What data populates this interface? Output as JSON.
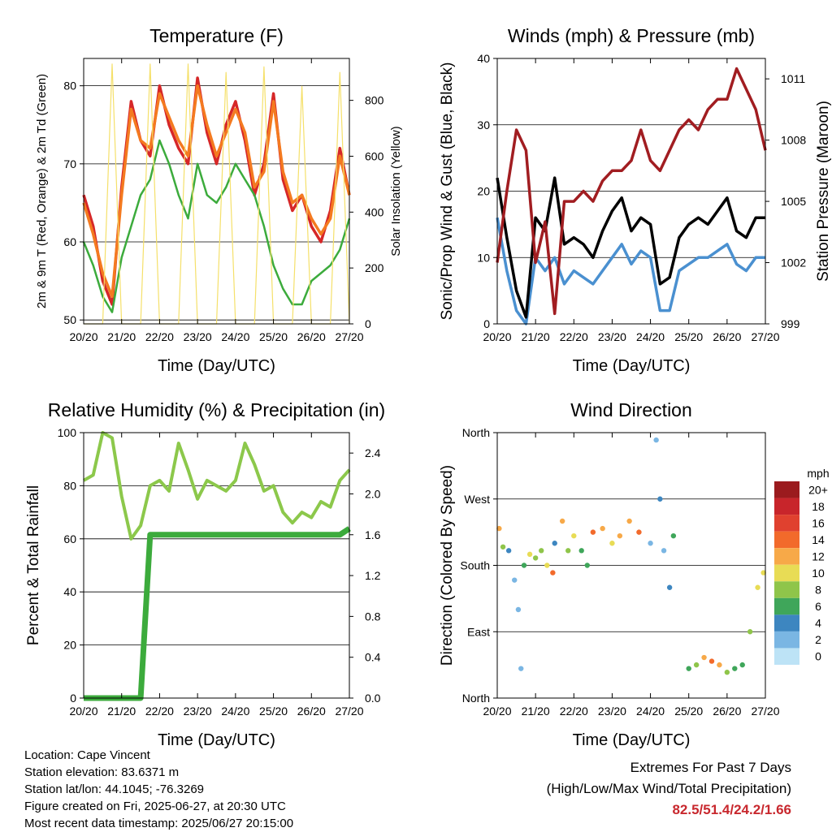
{
  "colors": {
    "temp_2m": "#d62728",
    "temp_9m": "#f47a20",
    "dewpoint": "#3cab3c",
    "insolation": "#f5e06a",
    "wind": "#4a90d0",
    "gust": "#000000",
    "pressure": "#a11d21",
    "rh": "#8cc84b",
    "precip": "#3cab3c",
    "extremes": "#c8282e"
  },
  "x_ticks": [
    "20/20",
    "21/20",
    "22/20",
    "23/20",
    "24/20",
    "25/20",
    "26/20",
    "27/20"
  ],
  "x_label": "Time (Day/UTC)",
  "chart_data": [
    {
      "id": "temperature",
      "type": "line",
      "title": "Temperature (F)",
      "xlabel": "Time (Day/UTC)",
      "ylabel": "2m & 9m T (Red, Orange) & 2m Td (Green)",
      "y2label": "Solar Insolation (Yellow)",
      "ylim": [
        49.5,
        83.5
      ],
      "y_ticks": [
        50,
        60,
        70,
        80
      ],
      "y2lim": [
        0,
        950
      ],
      "y2_ticks": [
        0,
        200,
        400,
        600,
        800
      ],
      "grid": true,
      "x": [
        0,
        0.25,
        0.5,
        0.75,
        1,
        1.25,
        1.5,
        1.75,
        2,
        2.25,
        2.5,
        2.75,
        3,
        3.25,
        3.5,
        3.75,
        4,
        4.25,
        4.5,
        4.75,
        5,
        5.25,
        5.5,
        5.75,
        6,
        6.25,
        6.5,
        6.75,
        7
      ],
      "series": [
        {
          "key": "temp_2m",
          "values": [
            66,
            62,
            55,
            52,
            67,
            78,
            73,
            71,
            80,
            75,
            72,
            70,
            81,
            74,
            70,
            75,
            78,
            73,
            66,
            70,
            79,
            68,
            64,
            66,
            62,
            60,
            64,
            72,
            66
          ]
        },
        {
          "key": "temp_9m",
          "values": [
            65,
            61,
            56,
            53,
            66,
            77,
            73,
            72,
            79,
            76,
            73,
            71,
            80,
            75,
            71,
            74,
            77,
            74,
            67,
            69,
            78,
            69,
            65,
            66,
            63,
            61,
            63,
            71,
            66
          ]
        },
        {
          "key": "dewpoint",
          "values": [
            60,
            57,
            53,
            51,
            58,
            62,
            66,
            68,
            73,
            70,
            66,
            63,
            70,
            66,
            65,
            67,
            70,
            68,
            66,
            62,
            57,
            54,
            52,
            52,
            55,
            56,
            57,
            59,
            63
          ]
        },
        {
          "key": "insolation",
          "values": [
            0,
            0,
            0,
            930,
            0,
            0,
            0,
            930,
            0,
            0,
            0,
            930,
            0,
            0,
            0,
            900,
            0,
            0,
            0,
            920,
            0,
            0,
            0,
            850,
            0,
            0,
            0,
            900,
            0
          ],
          "axis": "y2"
        }
      ]
    },
    {
      "id": "winds",
      "type": "line",
      "title": "Winds (mph) & Pressure (mb)",
      "xlabel": "Time (Day/UTC)",
      "ylabel": "Sonic/Prop Wind & Gust (Blue, Black)",
      "y2label": "Station Pressure (Maroon)",
      "ylim": [
        0,
        40
      ],
      "y_ticks": [
        0,
        10,
        20,
        30,
        40
      ],
      "y2lim": [
        999,
        1012
      ],
      "y2_ticks": [
        999,
        1002,
        1005,
        1008,
        1011
      ],
      "grid": true,
      "x": [
        0,
        0.25,
        0.5,
        0.75,
        1,
        1.25,
        1.5,
        1.75,
        2,
        2.25,
        2.5,
        2.75,
        3,
        3.25,
        3.5,
        3.75,
        4,
        4.25,
        4.5,
        4.75,
        5,
        5.25,
        5.5,
        5.75,
        6,
        6.25,
        6.5,
        6.75,
        7
      ],
      "series": [
        {
          "key": "wind",
          "values": [
            16,
            8,
            2,
            0,
            10,
            8,
            10,
            6,
            8,
            7,
            6,
            8,
            10,
            12,
            9,
            11,
            10,
            2,
            2,
            8,
            9,
            10,
            10,
            11,
            12,
            9,
            8,
            10,
            10
          ]
        },
        {
          "key": "gust",
          "values": [
            22,
            13,
            5,
            1,
            16,
            14,
            22,
            12,
            13,
            12,
            10,
            14,
            17,
            19,
            14,
            16,
            15,
            6,
            7,
            13,
            15,
            16,
            15,
            17,
            19,
            14,
            13,
            16,
            16
          ]
        },
        {
          "key": "pressure",
          "values": [
            1002,
            1005.5,
            1008.5,
            1007.5,
            1002,
            1004,
            999.5,
            1005,
            1005,
            1005.5,
            1005,
            1006,
            1006.5,
            1006.5,
            1007,
            1008.5,
            1007,
            1006.5,
            1007.5,
            1008.5,
            1009,
            1008.5,
            1009.5,
            1010,
            1010,
            1011.5,
            1010.5,
            1009.5,
            1007.5
          ],
          "axis": "y2"
        }
      ]
    },
    {
      "id": "humidity",
      "type": "line",
      "title": "Relative Humidity (%) & Precipitation (in)",
      "xlabel": "Time (Day/UTC)",
      "ylabel": "Percent & Total Rainfall",
      "ylim": [
        0,
        100
      ],
      "y_ticks": [
        0,
        20,
        40,
        60,
        80,
        100
      ],
      "y2lim": [
        0,
        2.6
      ],
      "y2_ticks": [
        0.0,
        0.4,
        0.8,
        1.2,
        1.6,
        2.0,
        2.4
      ],
      "grid": true,
      "x": [
        0,
        0.25,
        0.5,
        0.75,
        1,
        1.25,
        1.5,
        1.75,
        2,
        2.25,
        2.5,
        2.75,
        3,
        3.25,
        3.5,
        3.75,
        4,
        4.25,
        4.5,
        4.75,
        5,
        5.25,
        5.5,
        5.75,
        6,
        6.25,
        6.5,
        6.75,
        7
      ],
      "series": [
        {
          "key": "rh",
          "values": [
            82,
            84,
            100,
            98,
            76,
            60,
            65,
            80,
            82,
            78,
            96,
            86,
            75,
            82,
            80,
            78,
            82,
            96,
            88,
            78,
            80,
            70,
            66,
            70,
            68,
            74,
            72,
            82,
            86
          ]
        },
        {
          "key": "precip",
          "values": [
            0,
            0,
            0,
            0,
            0,
            0,
            0,
            1.6,
            1.6,
            1.6,
            1.6,
            1.6,
            1.6,
            1.6,
            1.6,
            1.6,
            1.6,
            1.6,
            1.6,
            1.6,
            1.6,
            1.6,
            1.6,
            1.6,
            1.6,
            1.6,
            1.6,
            1.6,
            1.66
          ],
          "axis": "y2"
        }
      ]
    },
    {
      "id": "wind_direction",
      "type": "scatter",
      "title": "Wind Direction",
      "xlabel": "Time (Day/UTC)",
      "ylabel": "Direction (Colored By Speed)",
      "ylim": [
        0,
        360
      ],
      "y_ticks": [
        "North",
        "East",
        "South",
        "West",
        "North"
      ],
      "y_tick_values": [
        0,
        90,
        180,
        270,
        360
      ],
      "grid": true,
      "colorbar": {
        "title": "mph",
        "labels": [
          "20+",
          "18",
          "16",
          "14",
          "12",
          "10",
          "8",
          "6",
          "4",
          "2",
          "0"
        ],
        "colors": [
          "#9b1b1e",
          "#c8252b",
          "#e0412f",
          "#f26a2b",
          "#f7a948",
          "#e8dc55",
          "#8fc54a",
          "#3fa65a",
          "#3d86c0",
          "#7ab6e3",
          "#bde3f6"
        ]
      },
      "x": [
        0.05,
        0.15,
        0.3,
        0.45,
        0.55,
        0.62,
        0.7,
        0.85,
        1.0,
        1.15,
        1.3,
        1.45,
        1.5,
        1.7,
        1.85,
        2.0,
        2.2,
        2.35,
        2.5,
        2.75,
        3.0,
        3.2,
        3.45,
        3.7,
        4.0,
        4.15,
        4.25,
        4.35,
        4.5,
        4.6,
        5.0,
        5.2,
        5.4,
        5.6,
        5.8,
        6.0,
        6.2,
        6.4,
        6.6,
        6.8,
        6.95
      ],
      "values": [
        230,
        205,
        200,
        160,
        120,
        40,
        180,
        195,
        190,
        200,
        180,
        170,
        210,
        240,
        200,
        220,
        200,
        180,
        225,
        230,
        210,
        220,
        240,
        225,
        210,
        350,
        270,
        200,
        150,
        220,
        40,
        45,
        55,
        50,
        45,
        35,
        40,
        45,
        90,
        150,
        170
      ],
      "speeds": [
        12,
        8,
        4,
        2,
        2,
        1,
        6,
        10,
        8,
        7,
        9,
        14,
        3,
        11,
        8,
        10,
        6,
        5,
        13,
        12,
        9,
        11,
        12,
        13,
        2,
        1,
        3,
        2,
        4,
        6,
        6,
        7,
        11,
        14,
        12,
        8,
        6,
        5,
        7,
        9,
        10
      ]
    }
  ],
  "metadata": {
    "location": "Location: Cape Vincent",
    "elevation": "Station elevation: 83.6371 m",
    "latlon": "Station lat/lon: 44.1045; -76.3269",
    "created": "Figure created on Fri, 2025-06-27, at 20:30 UTC",
    "recent": "Most recent data timestamp: 2025/06/27 20:15:00"
  },
  "extremes": {
    "heading": "Extremes For Past 7 Days",
    "subheading": "(High/Low/Max Wind/Total Precipitation)",
    "values": "82.5/51.4/24.2/1.66"
  }
}
